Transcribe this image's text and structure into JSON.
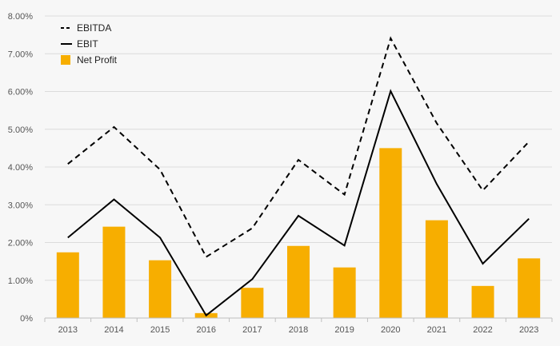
{
  "chart_data": {
    "type": "bar",
    "categories": [
      "2013",
      "2014",
      "2015",
      "2016",
      "2017",
      "2018",
      "2019",
      "2020",
      "2021",
      "2022",
      "2023"
    ],
    "ylim": [
      0,
      8
    ],
    "yticks": [
      0,
      1,
      2,
      3,
      4,
      5,
      6,
      7,
      8
    ],
    "ytick_labels": [
      "0%",
      "1.00%",
      "2.00%",
      "3.00%",
      "4.00%",
      "5.00%",
      "6.00%",
      "7.00%",
      "8.00%"
    ],
    "grid": true,
    "legend_position": "top-left",
    "series": [
      {
        "name": "EBITDA",
        "kind": "line",
        "style": "dashed",
        "color": "#000000",
        "values": [
          4.08,
          5.06,
          3.93,
          1.62,
          2.38,
          4.19,
          3.27,
          7.41,
          5.16,
          3.38,
          4.67
        ]
      },
      {
        "name": "EBIT",
        "kind": "line",
        "style": "solid",
        "color": "#000000",
        "values": [
          2.13,
          3.14,
          2.13,
          0.07,
          1.03,
          2.71,
          1.92,
          6.01,
          3.55,
          1.44,
          2.63
        ]
      },
      {
        "name": "Net Profit",
        "kind": "bar",
        "color": "#f7ae00",
        "values": [
          1.74,
          2.42,
          1.53,
          0.13,
          0.8,
          1.91,
          1.34,
          4.5,
          2.59,
          0.85,
          1.58
        ]
      }
    ]
  }
}
